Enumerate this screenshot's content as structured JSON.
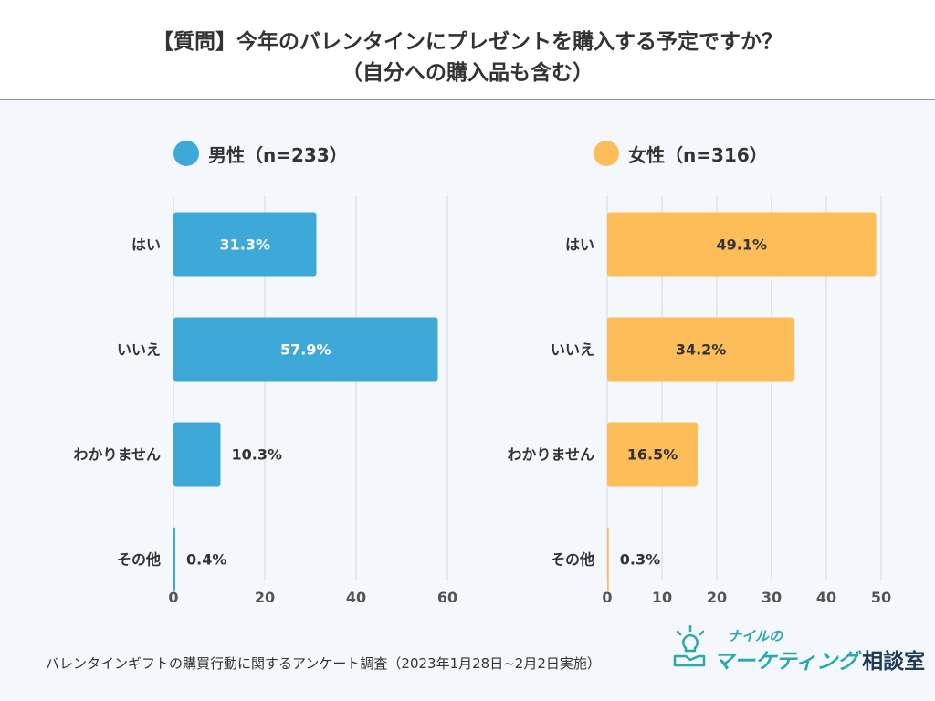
{
  "title": {
    "line1": "【質問】今年のバレンタインにプレゼントを購入する予定ですか？",
    "line2": "（自分への購入品も含む）"
  },
  "colors": {
    "male": "#3ea8d8",
    "female": "#fdbd59",
    "grid": "#d5dae2",
    "axis": "#555555"
  },
  "chart_data": [
    {
      "type": "bar",
      "orientation": "horizontal",
      "legend": "男性（n=233）",
      "categories": [
        "はい",
        "いいえ",
        "わかりません",
        "その他"
      ],
      "values": [
        31.3,
        57.9,
        10.3,
        0.4
      ],
      "labels": [
        "31.3%",
        "57.9%",
        "10.3%",
        "0.4%"
      ],
      "xlim": [
        0,
        60
      ],
      "xticks": [
        0,
        20,
        40,
        60
      ],
      "xtick_labels": [
        "0",
        "20",
        "40",
        "60"
      ],
      "unit": "%"
    },
    {
      "type": "bar",
      "orientation": "horizontal",
      "legend": "女性（n=316）",
      "categories": [
        "はい",
        "いいえ",
        "わかりません",
        "その他"
      ],
      "values": [
        49.1,
        34.2,
        16.5,
        0.3
      ],
      "labels": [
        "49.1%",
        "34.2%",
        "16.5%",
        "0.3%"
      ],
      "xlim": [
        0,
        50
      ],
      "xticks": [
        0,
        10,
        20,
        30,
        40,
        50
      ],
      "xtick_labels": [
        "0",
        "10",
        "20",
        "30",
        "40",
        "50"
      ],
      "unit": "%"
    }
  ],
  "footnote": "バレンタインギフトの購買行動に関するアンケート調査（2023年1月28日~2月2日実施）",
  "logo": {
    "top": "ナイルの",
    "main": "マーケティング",
    "sub": "相談室"
  }
}
